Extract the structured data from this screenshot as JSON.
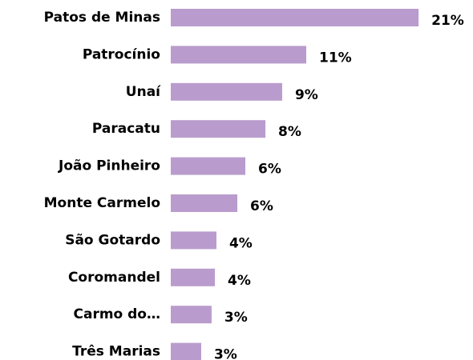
{
  "chart_data": {
    "type": "hbar",
    "categories": [
      "Patos de Minas",
      "Patrocínio",
      "Unaí",
      "Paracatu",
      "João Pinheiro",
      "Monte Carmelo",
      "São Gotardo",
      "Coromandel",
      "Carmo do…",
      "Três Marias"
    ],
    "values": [
      21,
      11.48,
      9.44,
      8.02,
      6.32,
      5.64,
      3.87,
      3.74,
      3.46,
      2.58
    ],
    "value_labels": [
      "21%",
      "11%",
      "9%",
      "8%",
      "6%",
      "6%",
      "4%",
      "4%",
      "3%",
      "3%"
    ],
    "color": "#b99ccd",
    "xlim": [
      0,
      25
    ]
  }
}
